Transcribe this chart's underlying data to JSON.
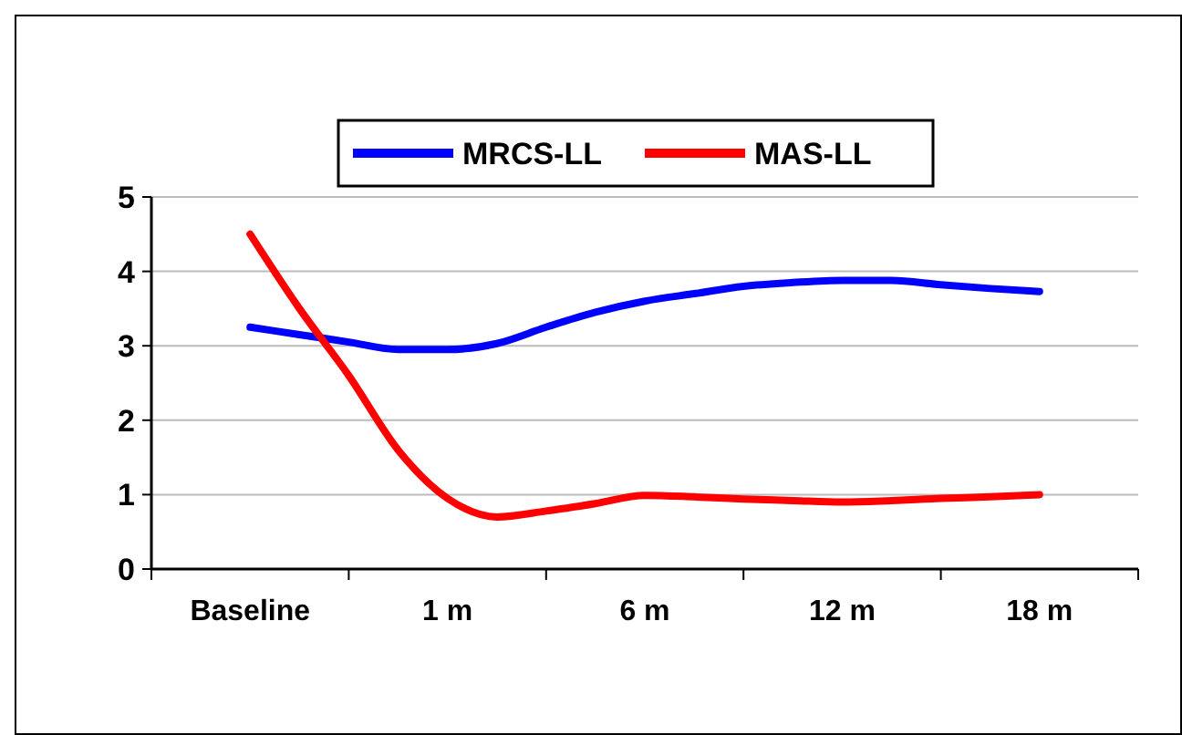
{
  "chart_data": {
    "type": "line",
    "categories": [
      "Baseline",
      null,
      null,
      null,
      "1 m",
      null,
      null,
      null,
      "6 m",
      null,
      null,
      null,
      "12 m",
      null,
      null,
      null,
      "18 m"
    ],
    "series": [
      {
        "name": "MRCS-LL",
        "color": "#0000ff",
        "values": [
          3.25,
          3.15,
          3.05,
          2.95,
          2.95,
          3.03,
          3.25,
          3.45,
          3.6,
          3.7,
          3.8,
          3.85,
          3.88,
          3.88,
          3.82,
          3.77,
          3.73
        ]
      },
      {
        "name": "MAS-LL",
        "color": "#ff0000",
        "values": [
          4.5,
          3.5,
          2.6,
          1.6,
          0.95,
          0.7,
          0.78,
          0.88,
          0.99,
          0.97,
          0.94,
          0.92,
          0.9,
          0.92,
          0.95,
          0.97,
          1.0
        ]
      }
    ],
    "ylim": [
      0,
      5
    ],
    "yticks": [
      0,
      1,
      2,
      3,
      4,
      5
    ],
    "grid": "y",
    "legend": "top",
    "marker": "none",
    "line_style": "solid"
  }
}
